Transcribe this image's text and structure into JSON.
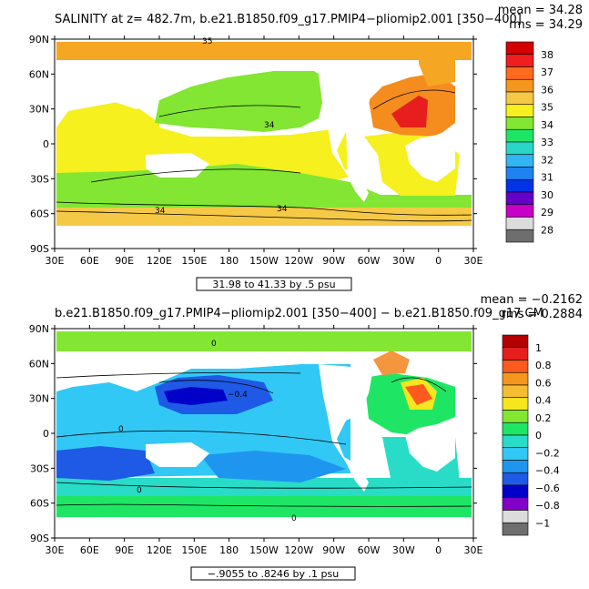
{
  "panels": [
    {
      "title": "SALINITY at z= 482.7m, b.e21.B1850.f09_g17.PMIP4−pliomip2.001 [350−400]",
      "mean_label": "mean = 34.28",
      "rms_label": "rms = 34.29",
      "range_label": "31.98 to 41.33 by .5 psu",
      "lat_labels": [
        "90N",
        "60N",
        "30N",
        "0",
        "30S",
        "60S",
        "90S"
      ],
      "lon_labels": [
        "30E",
        "60E",
        "90E",
        "120E",
        "150E",
        "180",
        "150W",
        "120W",
        "90W",
        "60W",
        "30W",
        "0",
        "30E"
      ],
      "colorbar": {
        "labels": [
          "38",
          "37",
          "36",
          "35",
          "34",
          "33",
          "32",
          "31",
          "30",
          "29",
          "28"
        ],
        "colors": [
          "#d40000",
          "#f01e1e",
          "#ff6a1e",
          "#f5961e",
          "#f5c846",
          "#f5f01e",
          "#82e632",
          "#1ee664",
          "#28d7c8",
          "#32b4f5",
          "#1e82f0",
          "#0032e6",
          "#6400c8",
          "#c800c8",
          "#dcdcdc",
          "#6e6e6e"
        ]
      },
      "contour_labels": [
        "35",
        "34",
        "34",
        "34"
      ]
    },
    {
      "title": "b.e21.B1850.f09_g17.PMIP4−pliomip2.001 [350−400] − b.e21.B1850.f09_g17.CM",
      "mean_label": "mean = −0.2162",
      "rms_label": "rms = 0.2884",
      "range_label": "−.9055 to .8246 by .1 psu",
      "lat_labels": [
        "90N",
        "60N",
        "30N",
        "0",
        "30S",
        "60S",
        "90S"
      ],
      "lon_labels": [
        "30E",
        "60E",
        "90E",
        "120E",
        "150E",
        "180",
        "150W",
        "120W",
        "90W",
        "60W",
        "30W",
        "0",
        "30E"
      ],
      "colorbar": {
        "labels": [
          "1",
          "0.8",
          "0.6",
          "0.4",
          "0.2",
          "0",
          "−0.2",
          "−0.4",
          "−0.6",
          "−0.8",
          "−1"
        ],
        "colors": [
          "#b40000",
          "#e61e1e",
          "#ff5a1e",
          "#f5961e",
          "#f5be32",
          "#f5e61e",
          "#82e632",
          "#1ee664",
          "#28dcc8",
          "#32c8f5",
          "#1e96f0",
          "#1e5ae6",
          "#0000c8",
          "#8200c8",
          "#dcdcdc",
          "#6e6e6e"
        ]
      },
      "contour_labels": [
        "0",
        "−0.4",
        "0",
        "0",
        "0"
      ]
    }
  ]
}
